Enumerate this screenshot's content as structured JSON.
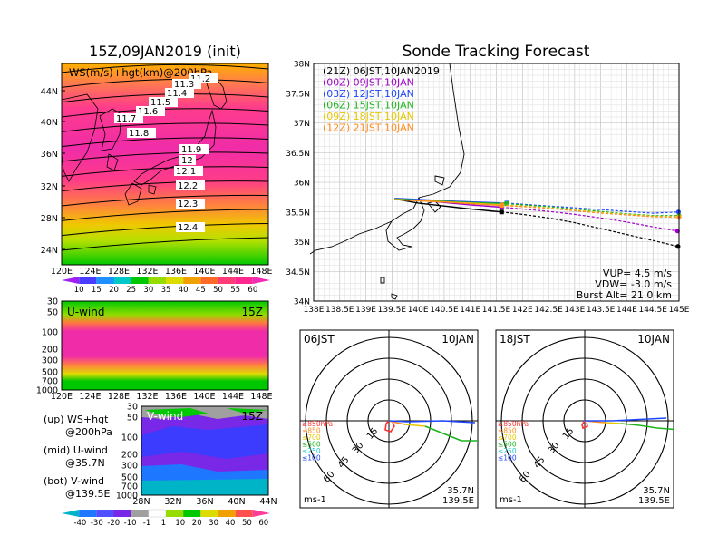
{
  "left": {
    "map_title": "15Z,09JAN2019 (init)",
    "map_label": "WS(m/s)+hgt(km)@200hPa",
    "map_lat_ticks": [
      "44N",
      "40N",
      "36N",
      "32N",
      "28N",
      "24N"
    ],
    "lon_ticks": [
      "120E",
      "124E",
      "128E",
      "132E",
      "136E",
      "140E",
      "144E",
      "148E"
    ],
    "contour_labels": [
      "11.2",
      "11.3",
      "11.4",
      "11.5",
      "11.6",
      "11.7",
      "11.8",
      "11.9",
      "12",
      "12.1",
      "12.2",
      "12.3",
      "12.4"
    ],
    "ws_colorbar": [
      "10",
      "15",
      "20",
      "25",
      "30",
      "35",
      "40",
      "45",
      "50",
      "55",
      "60"
    ],
    "u_label": "U-wind",
    "u_time": "15Z",
    "p_ticks": [
      "30",
      "50",
      "100",
      "200",
      "300",
      "500",
      "700",
      "1000"
    ],
    "v_label": "V-wind",
    "v_time": "15Z",
    "lat_ticks_v": [
      "28N",
      "32N",
      "36N",
      "40N",
      "44N"
    ],
    "wind_colorbar": [
      "-40",
      "-30",
      "-20",
      "-10",
      "-1",
      "1",
      "10",
      "20",
      "30",
      "40",
      "50",
      "60"
    ],
    "legend": {
      "up_line1": "(up) WS+hgt",
      "up_line2": "@200hPa",
      "mid_line1": "(mid) U-wind",
      "mid_line2": "@35.7N",
      "bot_line1": "(bot) V-wind",
      "bot_line2": "@139.5E"
    },
    "colors": {
      "ws_scale": [
        "#a020f0",
        "#4a3cff",
        "#1e90ff",
        "#00c8c8",
        "#00c800",
        "#96dc00",
        "#dcdc00",
        "#f0a000",
        "#ff6a28",
        "#ff3c78",
        "#ff2890",
        "#f02cb4"
      ],
      "wind_scale": [
        "#00b4c8",
        "#1e78ff",
        "#5050ff",
        "#7828e6",
        "#a0a0a0",
        "#ffffff",
        "#96dc00",
        "#00c800",
        "#dcdc00",
        "#f0a000",
        "#ff5050",
        "#ff3c9c"
      ]
    }
  },
  "right": {
    "title": "Sonde Tracking Forecast",
    "legend_lines": [
      {
        "text": "(21Z) 06JST,10JAN2019",
        "color": "#000000"
      },
      {
        "text": "(00Z) 09JST,10JAN",
        "color": "#a000c8"
      },
      {
        "text": "(03Z) 12JST,10JAN",
        "color": "#1e46ff"
      },
      {
        "text": "(06Z) 15JST,10JAN",
        "color": "#1eb41e"
      },
      {
        "text": "(09Z) 18JST,10JAN",
        "color": "#e6c800"
      },
      {
        "text": "(12Z) 21JST,10JAN",
        "color": "#ff8c1e"
      }
    ],
    "lat_ticks": [
      "38N",
      "37.5N",
      "37N",
      "36.5N",
      "36N",
      "35.5N",
      "35N",
      "34.5N",
      "34N"
    ],
    "lon_ticks": [
      "138E",
      "138.5E",
      "139E",
      "139.5E",
      "140E",
      "140.5E",
      "141E",
      "141.5E",
      "142E",
      "142.5E",
      "143E",
      "143.5E",
      "144E",
      "144.5E",
      "145E"
    ],
    "params": {
      "vup": "VUP= 4.5 m/s",
      "vdw": "VDW= -3.0 m/s",
      "burst": "Burst Alt= 21.0 km"
    },
    "polar": [
      {
        "time": "06JST",
        "date": "10JAN",
        "ring_labels": [
          "15",
          "30",
          "45",
          "60"
        ],
        "levels": [
          "≥850hPa",
          "≤850",
          "≤700",
          "≤500",
          "≤250",
          "≤100"
        ],
        "unit": "ms-1",
        "lat": "35.7N",
        "lon": "139.5E"
      },
      {
        "time": "18JST",
        "date": "10JAN",
        "ring_labels": [
          "15",
          "30",
          "45",
          "60"
        ],
        "levels": [
          "≥850hPa",
          "≤850",
          "≤700",
          "≤500",
          "≤250",
          "≤100"
        ],
        "unit": "ms-1",
        "lat": "35.7N",
        "lon": "139.5E"
      }
    ],
    "level_colors": [
      "#ff3232",
      "#ff8c1e",
      "#e6c800",
      "#1eb41e",
      "#1ec8c8",
      "#1e46ff"
    ]
  },
  "chart_data": [
    {
      "type": "heatmap",
      "title": "15Z,09JAN2019 (init)",
      "variable": "WS(m/s)+hgt(km)@200hPa",
      "xlabel": "",
      "ylabel": "",
      "xlim": [
        120,
        150
      ],
      "ylim": [
        22,
        48
      ],
      "x_ticks": [
        "120E",
        "124E",
        "128E",
        "132E",
        "136E",
        "140E",
        "144E",
        "148E"
      ],
      "y_ticks": [
        "24N",
        "28N",
        "32N",
        "36N",
        "40N",
        "44N"
      ],
      "height_contours_km": [
        11.2,
        11.3,
        11.4,
        11.5,
        11.6,
        11.7,
        11.8,
        11.9,
        12,
        12.1,
        12.2,
        12.3,
        12.4
      ],
      "colorbar": [
        10,
        15,
        20,
        25,
        30,
        35,
        40,
        45,
        50,
        55,
        60
      ],
      "grid": false
    },
    {
      "type": "heatmap",
      "title": "U-wind",
      "time": "15Z",
      "section": "@35.7N",
      "xlim": [
        120,
        150
      ],
      "y_pressure_ticks": [
        30,
        50,
        100,
        200,
        300,
        500,
        700,
        1000
      ],
      "x_ticks": [
        "120E",
        "124E",
        "128E",
        "132E",
        "136E",
        "140E",
        "144E",
        "148E"
      ]
    },
    {
      "type": "heatmap",
      "title": "V-wind",
      "time": "15Z",
      "section": "@139.5E",
      "xlim": [
        28,
        44
      ],
      "y_pressure_ticks": [
        30,
        50,
        100,
        200,
        300,
        500,
        700,
        1000
      ],
      "x_ticks": [
        "28N",
        "32N",
        "36N",
        "40N",
        "44N"
      ],
      "colorbar": [
        -40,
        -30,
        -20,
        -10,
        -1,
        1,
        10,
        20,
        30,
        40,
        50,
        60
      ]
    },
    {
      "type": "line",
      "title": "Sonde Tracking Forecast",
      "xlim": [
        138,
        145
      ],
      "ylim": [
        34,
        38
      ],
      "grid": true,
      "start": {
        "lon": 139.55,
        "lat": 35.72
      },
      "series": [
        {
          "name": "(21Z) 06JST,10JAN2019",
          "color": "#000000",
          "x": [
            139.55,
            140.0,
            140.5,
            141.0,
            141.6,
            142.0,
            142.5,
            143.0,
            143.5,
            144.0,
            144.5,
            144.98
          ],
          "y": [
            35.72,
            35.65,
            35.6,
            35.55,
            35.5,
            35.46,
            35.4,
            35.32,
            35.22,
            35.12,
            35.02,
            34.92
          ],
          "burst": {
            "lon": 141.6,
            "lat": 35.5
          }
        },
        {
          "name": "(00Z) 09JST,10JAN",
          "color": "#a000c8",
          "x": [
            139.55,
            140.0,
            140.5,
            141.0,
            141.6,
            142.0,
            142.5,
            143.0,
            143.5,
            144.0,
            144.5,
            144.97
          ],
          "y": [
            35.72,
            35.7,
            35.66,
            35.62,
            35.58,
            35.55,
            35.51,
            35.46,
            35.4,
            35.33,
            35.25,
            35.18
          ],
          "burst": {
            "lon": 141.6,
            "lat": 35.58
          }
        },
        {
          "name": "(03Z) 12JST,10JAN",
          "color": "#1e46ff",
          "x": [
            139.55,
            140.0,
            140.5,
            141.0,
            141.7,
            142.0,
            142.5,
            143.0,
            143.5,
            144.0,
            144.5,
            144.99
          ],
          "y": [
            35.73,
            35.71,
            35.69,
            35.67,
            35.65,
            35.63,
            35.6,
            35.57,
            35.54,
            35.51,
            35.48,
            35.5
          ],
          "burst": {
            "lon": 141.7,
            "lat": 35.65
          }
        },
        {
          "name": "(06Z) 15JST,10JAN",
          "color": "#1eb41e",
          "x": [
            139.55,
            140.0,
            140.5,
            141.0,
            141.7,
            142.0,
            142.5,
            143.0,
            143.5,
            144.0,
            144.5,
            145.0
          ],
          "y": [
            35.72,
            35.7,
            35.68,
            35.66,
            35.64,
            35.62,
            35.59,
            35.55,
            35.51,
            35.47,
            35.44,
            35.44
          ],
          "burst": {
            "lon": 141.7,
            "lat": 35.64
          }
        },
        {
          "name": "(09Z) 18JST,10JAN",
          "color": "#e6c800",
          "x": [
            139.55,
            140.0,
            140.5,
            141.0,
            141.6,
            142.0,
            142.5,
            143.0,
            143.5,
            144.0,
            144.5,
            145.0
          ],
          "y": [
            35.71,
            35.69,
            35.67,
            35.65,
            35.62,
            35.6,
            35.57,
            35.53,
            35.49,
            35.46,
            35.43,
            35.42
          ],
          "burst": {
            "lon": 141.6,
            "lat": 35.62
          }
        },
        {
          "name": "(12Z) 21JST,10JAN",
          "color": "#ff8c1e",
          "x": [
            139.55,
            140.0,
            140.5,
            141.0,
            141.6,
            142.0,
            142.5,
            143.0,
            143.5,
            144.0,
            144.5,
            145.0
          ],
          "y": [
            35.71,
            35.69,
            35.67,
            35.64,
            35.61,
            35.59,
            35.56,
            35.52,
            35.48,
            35.45,
            35.42,
            35.41
          ],
          "burst": {
            "lon": 141.6,
            "lat": 35.61
          }
        }
      ]
    }
  ]
}
